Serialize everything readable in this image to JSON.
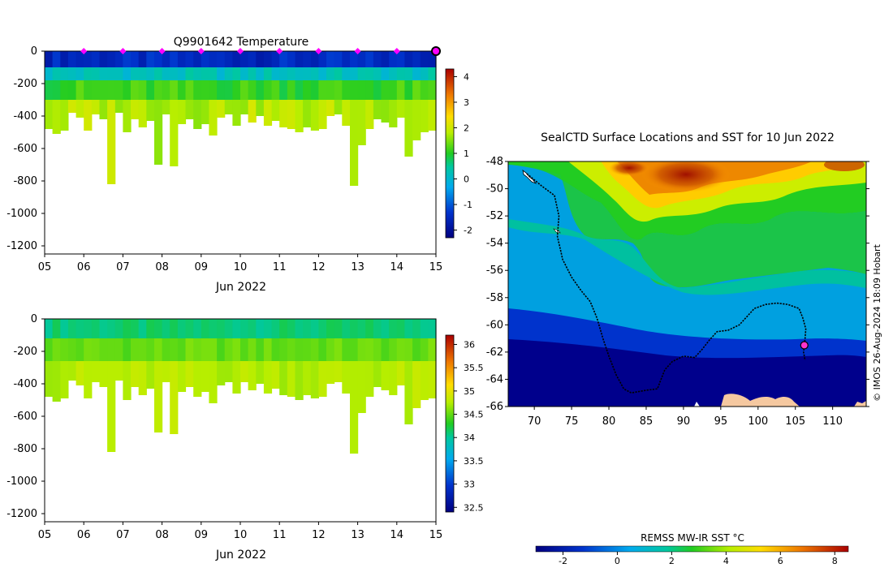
{
  "chart_data": [
    {
      "type": "heatmap",
      "title": "Q9901642  Temperature",
      "xlabel": "Jun 2022",
      "x_ticks": [
        "05",
        "06",
        "07",
        "08",
        "09",
        "10",
        "11",
        "12",
        "13",
        "14",
        "15"
      ],
      "x_range": [
        5,
        15
      ],
      "y_ticks": [
        "0",
        "-200",
        "-400",
        "-600",
        "-800",
        "-1000",
        "-1200"
      ],
      "y_range": [
        -1250,
        0
      ],
      "colorbar": {
        "ticks": [
          "4",
          "3",
          "2",
          "1",
          "0",
          "-1",
          "-2"
        ],
        "range": [
          -2.3,
          4.3
        ]
      },
      "profile_days": [
        5.1,
        5.3,
        5.5,
        5.7,
        5.9,
        6.1,
        6.3,
        6.5,
        6.7,
        6.9,
        7.1,
        7.3,
        7.5,
        7.7,
        7.9,
        8.1,
        8.3,
        8.5,
        8.7,
        8.9,
        9.1,
        9.3,
        9.5,
        9.7,
        9.9,
        10.1,
        10.3,
        10.5,
        10.7,
        10.9,
        11.1,
        11.3,
        11.5,
        11.7,
        11.9,
        12.1,
        12.3,
        12.5,
        12.7,
        12.9,
        13.1,
        13.3,
        13.5,
        13.7,
        13.9,
        14.1,
        14.3,
        14.5,
        14.7,
        14.9
      ],
      "profile_max_depth": [
        480,
        510,
        490,
        380,
        410,
        490,
        390,
        420,
        820,
        380,
        500,
        420,
        470,
        430,
        700,
        390,
        710,
        450,
        420,
        480,
        450,
        520,
        410,
        390,
        460,
        390,
        440,
        400,
        460,
        430,
        470,
        480,
        500,
        470,
        490,
        480,
        400,
        390,
        460,
        830,
        580,
        480,
        420,
        440,
        470,
        410,
        650,
        550,
        500,
        490
      ],
      "surface_markers": [
        "06",
        "07",
        "08",
        "09",
        "10",
        "11",
        "12",
        "13",
        "14"
      ],
      "layers": [
        {
          "top": 0,
          "bottom": 100,
          "value": -1.5
        },
        {
          "top": 100,
          "bottom": 180,
          "value": 0.2
        },
        {
          "top": 180,
          "bottom": 300,
          "value": 1.1
        },
        {
          "top": 300,
          "bottom": 1300,
          "value": 1.8
        }
      ]
    },
    {
      "type": "heatmap",
      "title": "",
      "xlabel": "Jun 2022",
      "x_ticks": [
        "05",
        "06",
        "07",
        "08",
        "09",
        "10",
        "11",
        "12",
        "13",
        "14",
        "15"
      ],
      "x_range": [
        5,
        15
      ],
      "y_ticks": [
        "0",
        "-200",
        "-400",
        "-600",
        "-800",
        "-1000",
        "-1200"
      ],
      "y_range": [
        -1250,
        0
      ],
      "colorbar": {
        "ticks": [
          "36",
          "35.5",
          "35",
          "34.5",
          "34",
          "33.5",
          "33",
          "32.5"
        ],
        "range": [
          32.4,
          36.2
        ]
      },
      "layers": [
        {
          "top": 0,
          "bottom": 120,
          "value": 34.1
        },
        {
          "top": 120,
          "bottom": 260,
          "value": 34.5
        },
        {
          "top": 260,
          "bottom": 1300,
          "value": 34.75
        }
      ]
    },
    {
      "type": "map",
      "title": "SealCTD Surface Locations and SST for 10 Jun 2022",
      "x_ticks": [
        "70",
        "75",
        "80",
        "85",
        "90",
        "95",
        "100",
        "105",
        "110"
      ],
      "x_range": [
        66.5,
        114.5
      ],
      "y_ticks": [
        "-48",
        "-50",
        "-52",
        "-54",
        "-56",
        "-58",
        "-60",
        "-62",
        "-64",
        "-66"
      ],
      "y_range": [
        -66,
        -48
      ],
      "credit": "© IMOS 26-Aug-2024 18:09 Hobart",
      "colorbar_label": "REMSS MW-IR SST °C",
      "colorbar_ticks": [
        "-2",
        "0",
        "2",
        "4",
        "6",
        "8"
      ],
      "colorbar_range": [
        -3,
        8.5
      ],
      "track": [
        [
          69,
          -48.9
        ],
        [
          71,
          -49.8
        ],
        [
          72.7,
          -50.5
        ],
        [
          73.3,
          -52
        ],
        [
          73.1,
          -53.5
        ],
        [
          73.8,
          -55.2
        ],
        [
          75,
          -56.5
        ],
        [
          76.3,
          -57.5
        ],
        [
          77.5,
          -58.3
        ],
        [
          78.4,
          -59.5
        ],
        [
          79.2,
          -61
        ],
        [
          80,
          -62.3
        ],
        [
          81,
          -63.7
        ],
        [
          82,
          -64.7
        ],
        [
          83,
          -65
        ],
        [
          85,
          -64.8
        ],
        [
          86.5,
          -64.7
        ],
        [
          87,
          -64
        ],
        [
          87.5,
          -63.3
        ],
        [
          88.5,
          -62.7
        ],
        [
          90,
          -62.3
        ],
        [
          91.5,
          -62.4
        ],
        [
          92.5,
          -61.8
        ],
        [
          93.5,
          -61.1
        ],
        [
          94.5,
          -60.5
        ],
        [
          96,
          -60.4
        ],
        [
          97.5,
          -60
        ],
        [
          98.5,
          -59.4
        ],
        [
          99.5,
          -58.8
        ],
        [
          101,
          -58.5
        ],
        [
          102.5,
          -58.4
        ],
        [
          104,
          -58.5
        ],
        [
          105.5,
          -58.8
        ],
        [
          106,
          -59.5
        ],
        [
          106.4,
          -60.3
        ],
        [
          106.3,
          -61
        ],
        [
          106.2,
          -61.5
        ],
        [
          106.1,
          -62
        ],
        [
          106.3,
          -62.6
        ]
      ],
      "current_position": [
        106.2,
        -61.5
      ]
    }
  ]
}
